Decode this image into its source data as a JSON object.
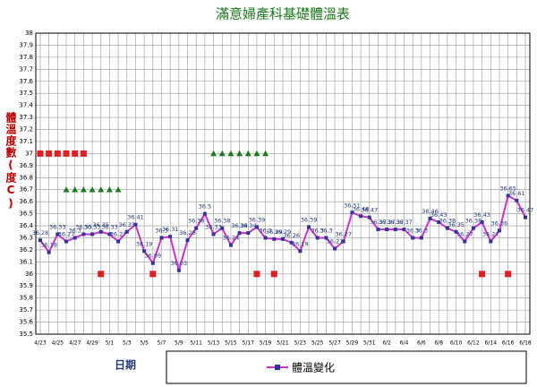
{
  "chart_data": {
    "type": "line",
    "title": "滿意婦產科基礎體溫表",
    "y_label": "體溫度數(度C)",
    "x_label": "日期",
    "categories": [
      "4/23",
      null,
      "4/25",
      null,
      "4/27",
      null,
      "4/29",
      null,
      "5/1",
      null,
      "5/3",
      null,
      "5/5",
      null,
      "5/7",
      null,
      "5/9",
      null,
      "5/11",
      null,
      "5/13",
      null,
      "5/15",
      null,
      "5/17",
      null,
      "5/19",
      null,
      "5/21",
      null,
      "5/23",
      null,
      "5/25",
      null,
      "5/27",
      null,
      "5/29",
      null,
      "5/31",
      null,
      "6/2",
      null,
      "6/4",
      null,
      "6/6",
      null,
      "6/8",
      null,
      "6/10",
      null,
      "6/12",
      null,
      "6/14",
      null,
      "6/16",
      null,
      "6/18"
    ],
    "series": [
      {
        "name": "體溫變化",
        "color": "#cc33cc",
        "marker": "square",
        "marker_color": "#333399",
        "labels": true,
        "values": [
          36.28,
          36.18,
          36.33,
          36.27,
          36.3,
          36.33,
          36.33,
          36.35,
          36.33,
          36.27,
          36.35,
          36.41,
          36.19,
          36.09,
          36.3,
          36.31,
          36.03,
          36.28,
          36.38,
          36.5,
          36.33,
          36.38,
          36.24,
          36.34,
          36.34,
          36.39,
          36.3,
          36.29,
          36.29,
          36.26,
          36.19,
          36.39,
          36.3,
          36.3,
          36.21,
          36.27,
          36.51,
          36.48,
          36.47,
          36.37,
          36.37,
          36.37,
          36.37,
          36.3,
          36.3,
          36.46,
          36.43,
          36.38,
          36.35,
          36.27,
          36.38,
          36.43,
          36.27,
          36.36,
          36.65,
          36.61,
          36.47
        ]
      },
      {
        "color": "#e02020",
        "marker": "square",
        "values": [
          37,
          37,
          37,
          37,
          37,
          37,
          null,
          36,
          null,
          null,
          null,
          null,
          null,
          36,
          null,
          null,
          null,
          null,
          null,
          null,
          null,
          null,
          null,
          null,
          null,
          36,
          null,
          36,
          null,
          null,
          null,
          null,
          null,
          null,
          null,
          null,
          null,
          null,
          null,
          null,
          null,
          null,
          null,
          null,
          null,
          null,
          null,
          null,
          null,
          null,
          null,
          36,
          null,
          null,
          36,
          null,
          null
        ]
      },
      {
        "color": "#1a7a1a",
        "marker": "triangle",
        "values": [
          null,
          null,
          null,
          36.7,
          36.7,
          36.7,
          36.7,
          36.7,
          36.7,
          36.7,
          null,
          null,
          null,
          null,
          null,
          null,
          null,
          null,
          null,
          null,
          37,
          37,
          37,
          37,
          37,
          37,
          37,
          null,
          null,
          null,
          null,
          null,
          null,
          null,
          null,
          null,
          null,
          null,
          null,
          null,
          null,
          null,
          null,
          null,
          null,
          null,
          null,
          null,
          null,
          null,
          null,
          null,
          null,
          null,
          null,
          null,
          null
        ]
      }
    ],
    "ylim": [
      35.5,
      38
    ],
    "yticks": [
      35.5,
      35.6,
      35.7,
      35.8,
      35.9,
      36,
      36.1,
      36.2,
      36.3,
      36.4,
      36.5,
      36.6,
      36.7,
      36.8,
      36.9,
      37,
      37.1,
      37.2,
      37.3,
      37.4,
      37.5,
      37.6,
      37.7,
      37.8,
      37.9,
      38
    ],
    "grid": true
  }
}
